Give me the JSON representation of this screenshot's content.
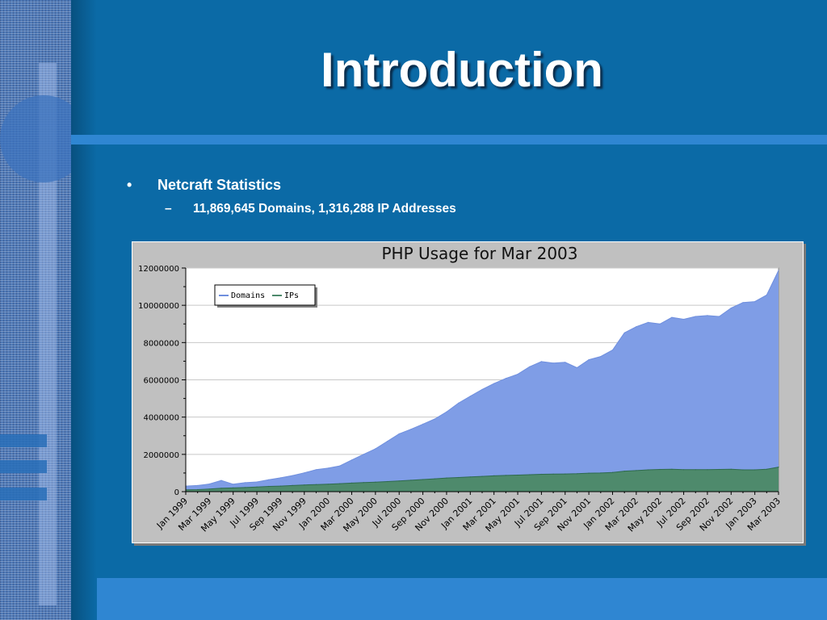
{
  "slide": {
    "title": "Introduction",
    "bullet": "Netcraft Statistics",
    "bullet_mark": "•",
    "sub_bullet": "11,869,645 Domains, 1,316,288 IP Addresses",
    "sub_mark": "–"
  },
  "colors": {
    "background": "#0b6aa6",
    "accent_band": "#2f86d2",
    "domains_fill": "#7f9de6",
    "domains_line": "#6f8fde",
    "ips_fill": "#4e8a6c",
    "ips_line": "#2e6a4e"
  },
  "chart_data": {
    "type": "area",
    "title": "PHP Usage for Mar 2003",
    "xlabel": "",
    "ylabel": "",
    "ylim": [
      0,
      12000000
    ],
    "yticks": [
      "0",
      "2000000",
      "4000000",
      "6000000",
      "8000000",
      "10000000",
      "12000000"
    ],
    "ytick_values": [
      0,
      2000000,
      4000000,
      6000000,
      8000000,
      10000000,
      12000000
    ],
    "grid": true,
    "legend_position": "top-left",
    "x_tick_labels": [
      "Jan 1999",
      "Mar 1999",
      "May 1999",
      "Jul 1999",
      "Sep 1999",
      "Nov 1999",
      "Jan 2000",
      "Mar 2000",
      "May 2000",
      "Jul 2000",
      "Sep 2000",
      "Nov 2000",
      "Jan 2001",
      "Mar 2001",
      "May 2001",
      "Jul 2001",
      "Sep 2001",
      "Nov 2001",
      "Jan 2002",
      "Mar 2002",
      "May 2002",
      "Jul 2002",
      "Sep 2002",
      "Nov 2002",
      "Jan 2003",
      "Mar 2003"
    ],
    "x": [
      "Jan 1999",
      "Feb 1999",
      "Mar 1999",
      "Apr 1999",
      "May 1999",
      "Jun 1999",
      "Jul 1999",
      "Aug 1999",
      "Sep 1999",
      "Oct 1999",
      "Nov 1999",
      "Dec 1999",
      "Jan 2000",
      "Feb 2000",
      "Mar 2000",
      "Apr 2000",
      "May 2000",
      "Jun 2000",
      "Jul 2000",
      "Aug 2000",
      "Sep 2000",
      "Oct 2000",
      "Nov 2000",
      "Dec 2000",
      "Jan 2001",
      "Feb 2001",
      "Mar 2001",
      "Apr 2001",
      "May 2001",
      "Jun 2001",
      "Jul 2001",
      "Aug 2001",
      "Sep 2001",
      "Oct 2001",
      "Nov 2001",
      "Dec 2001",
      "Jan 2002",
      "Feb 2002",
      "Mar 2002",
      "Apr 2002",
      "May 2002",
      "Jun 2002",
      "Jul 2002",
      "Aug 2002",
      "Sep 2002",
      "Oct 2002",
      "Nov 2002",
      "Dec 2002",
      "Jan 2003",
      "Feb 2003",
      "Mar 2003"
    ],
    "series": [
      {
        "name": "Domains",
        "values": [
          300000,
          330000,
          410000,
          600000,
          400000,
          480000,
          520000,
          640000,
          740000,
          860000,
          1010000,
          1180000,
          1260000,
          1380000,
          1700000,
          2000000,
          2300000,
          2700000,
          3100000,
          3350000,
          3620000,
          3900000,
          4280000,
          4750000,
          5120000,
          5480000,
          5800000,
          6080000,
          6300000,
          6700000,
          6980000,
          6900000,
          6940000,
          6650000,
          7080000,
          7250000,
          7600000,
          8520000,
          8850000,
          9080000,
          9000000,
          9350000,
          9250000,
          9400000,
          9450000,
          9400000,
          9850000,
          10150000,
          10200000,
          10550000,
          11869645
        ]
      },
      {
        "name": "IPs",
        "values": [
          100000,
          110000,
          140000,
          180000,
          200000,
          220000,
          250000,
          280000,
          300000,
          330000,
          360000,
          380000,
          400000,
          430000,
          460000,
          490000,
          510000,
          540000,
          570000,
          610000,
          650000,
          690000,
          730000,
          760000,
          790000,
          820000,
          850000,
          870000,
          890000,
          910000,
          930000,
          940000,
          950000,
          960000,
          990000,
          1000000,
          1030000,
          1100000,
          1130000,
          1170000,
          1190000,
          1200000,
          1180000,
          1180000,
          1180000,
          1190000,
          1200000,
          1170000,
          1170000,
          1200000,
          1316288
        ]
      }
    ]
  }
}
